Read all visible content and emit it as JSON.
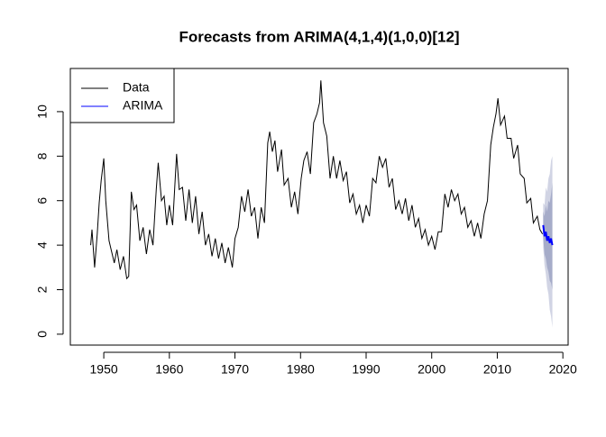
{
  "chart_data": {
    "type": "line",
    "title": "Forecasts from ARIMA(4,1,4)(1,0,0)[12]",
    "xlim": [
      1944.9,
      2020.8
    ],
    "ylim": [
      -0.49,
      11.94
    ],
    "xticks": [
      1950,
      1960,
      1970,
      1980,
      1990,
      2000,
      2010,
      2020
    ],
    "yticks": [
      0,
      2,
      4,
      6,
      8,
      10
    ],
    "legend": "topleft",
    "series": [
      {
        "name": "Data",
        "color": "#000000",
        "x": [
          1948.0,
          1948.2,
          1948.6,
          1949.0,
          1949.3,
          1949.6,
          1950.0,
          1950.3,
          1950.8,
          1951.2,
          1951.6,
          1952.0,
          1952.5,
          1953.0,
          1953.5,
          1953.8,
          1954.2,
          1954.6,
          1955.0,
          1955.5,
          1956.0,
          1956.5,
          1957.0,
          1957.5,
          1958.0,
          1958.3,
          1958.8,
          1959.2,
          1959.6,
          1960.0,
          1960.5,
          1961.1,
          1961.5,
          1962.0,
          1962.5,
          1963.0,
          1963.5,
          1964.0,
          1964.5,
          1965.0,
          1965.5,
          1966.0,
          1966.5,
          1967.0,
          1967.5,
          1968.0,
          1968.5,
          1969.0,
          1969.6,
          1970.0,
          1970.5,
          1971.0,
          1971.5,
          1972.0,
          1972.5,
          1973.0,
          1973.5,
          1974.0,
          1974.5,
          1975.0,
          1975.3,
          1975.7,
          1976.1,
          1976.5,
          1977.1,
          1977.5,
          1978.1,
          1978.6,
          1979.1,
          1979.6,
          1980.1,
          1980.5,
          1981.0,
          1981.5,
          1982.0,
          1982.5,
          1982.9,
          1983.1,
          1983.5,
          1984.0,
          1984.5,
          1985.0,
          1985.5,
          1986.0,
          1986.5,
          1987.0,
          1987.5,
          1988.0,
          1988.5,
          1989.0,
          1989.5,
          1990.0,
          1990.5,
          1991.0,
          1991.5,
          1992.0,
          1992.5,
          1993.0,
          1993.5,
          1994.0,
          1994.5,
          1995.0,
          1995.5,
          1996.0,
          1996.5,
          1997.0,
          1997.5,
          1998.0,
          1998.5,
          1999.0,
          1999.5,
          2000.0,
          2000.5,
          2001.0,
          2001.5,
          2002.0,
          2002.5,
          2003.0,
          2003.5,
          2004.0,
          2004.5,
          2005.0,
          2005.5,
          2006.0,
          2006.5,
          2007.0,
          2007.5,
          2008.0,
          2008.5,
          2009.0,
          2009.4,
          2009.8,
          2010.1,
          2010.5,
          2011.1,
          2011.5,
          2012.1,
          2012.5,
          2013.1,
          2013.5,
          2014.1,
          2014.5,
          2015.1,
          2015.5,
          2016.1,
          2016.5,
          2016.9
        ],
        "values": [
          4.0,
          4.7,
          3.0,
          4.5,
          5.9,
          6.9,
          7.9,
          6.0,
          4.2,
          3.7,
          3.2,
          3.8,
          2.9,
          3.5,
          2.5,
          2.6,
          6.4,
          5.6,
          5.8,
          4.2,
          4.8,
          3.6,
          4.7,
          4.0,
          6.5,
          7.7,
          6.0,
          6.2,
          4.9,
          5.8,
          4.9,
          8.1,
          6.5,
          6.6,
          5.1,
          6.5,
          5.0,
          6.2,
          4.5,
          5.5,
          4.0,
          4.5,
          3.5,
          4.3,
          3.4,
          4.1,
          3.2,
          3.9,
          3.0,
          4.3,
          4.8,
          6.2,
          5.5,
          6.5,
          5.3,
          5.7,
          4.3,
          5.7,
          5.0,
          8.6,
          9.1,
          8.2,
          8.7,
          7.3,
          8.3,
          6.7,
          7.0,
          5.7,
          6.4,
          5.4,
          7.0,
          7.8,
          8.2,
          7.2,
          9.5,
          9.9,
          10.4,
          11.4,
          9.5,
          8.9,
          7.0,
          8.0,
          7.0,
          7.8,
          6.9,
          7.3,
          5.9,
          6.3,
          5.4,
          5.8,
          5.0,
          5.8,
          5.3,
          7.0,
          6.8,
          8.0,
          7.5,
          7.9,
          6.6,
          7.0,
          5.6,
          6.0,
          5.4,
          6.1,
          5.1,
          5.8,
          4.8,
          5.2,
          4.3,
          4.7,
          4.0,
          4.4,
          3.8,
          4.6,
          4.6,
          6.3,
          5.7,
          6.5,
          6.0,
          6.3,
          5.4,
          5.7,
          4.8,
          5.1,
          4.4,
          5.0,
          4.3,
          5.4,
          6.0,
          8.5,
          9.3,
          9.9,
          10.6,
          9.4,
          9.8,
          8.8,
          8.8,
          7.9,
          8.5,
          7.2,
          7.0,
          5.9,
          6.1,
          5.0,
          5.3,
          4.7,
          4.5
        ]
      },
      {
        "name": "ARIMA",
        "color": "#0000ff",
        "x": [
          2017.0,
          2017.2,
          2017.4,
          2017.6,
          2017.8,
          2018.0,
          2018.2,
          2018.4
        ],
        "values": [
          4.9,
          4.4,
          4.6,
          4.2,
          4.4,
          4.1,
          4.3,
          4.0
        ],
        "intervals": [
          {
            "color": "#d1d4e4",
            "lower": [
              3.9,
              3.1,
              2.7,
              2.1,
              1.8,
              1.1,
              0.8,
              0.3
            ],
            "upper": [
              5.9,
              5.8,
              6.6,
              6.4,
              7.0,
              7.2,
              7.8,
              8.0
            ]
          },
          {
            "color": "#a6acc9",
            "lower": [
              4.3,
              3.6,
              3.4,
              3.0,
              2.8,
              2.4,
              2.3,
              2.0
            ],
            "upper": [
              5.5,
              5.3,
              5.8,
              5.5,
              6.0,
              5.9,
              6.3,
              6.8
            ]
          }
        ]
      }
    ]
  }
}
